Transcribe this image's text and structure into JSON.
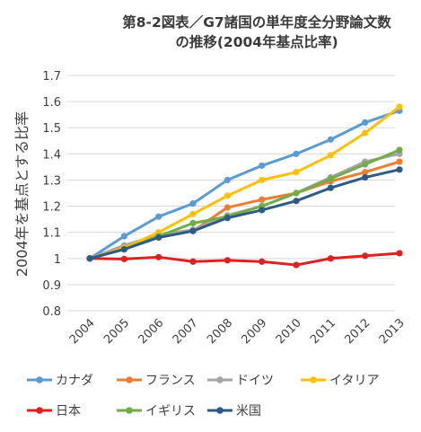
{
  "chart_data": {
    "type": "line",
    "title_line1": "第8-2図表／G7諸国の単年度全分野論文数",
    "title_line2": "の推移(2004年基点比率)",
    "xlabel": "",
    "ylabel": "2004年を基点とする比率",
    "categories": [
      "2004",
      "2005",
      "2006",
      "2007",
      "2008",
      "2009",
      "2010",
      "2011",
      "2012",
      "2013"
    ],
    "ylim": [
      0.8,
      1.7
    ],
    "yticks": [
      "0.8",
      "0.9",
      "1",
      "1.1",
      "1.2",
      "1.3",
      "1.4",
      "1.5",
      "1.6",
      "1.7"
    ],
    "grid": "horizontal",
    "legend_position": "bottom",
    "series": [
      {
        "name": "カナダ",
        "color": "#5b9bd5",
        "values": [
          1.0,
          1.085,
          1.16,
          1.21,
          1.3,
          1.355,
          1.4,
          1.455,
          1.52,
          1.565
        ]
      },
      {
        "name": "フランス",
        "color": "#ed7d31",
        "values": [
          1.0,
          1.045,
          1.085,
          1.105,
          1.195,
          1.225,
          1.25,
          1.295,
          1.33,
          1.37
        ]
      },
      {
        "name": "ドイツ",
        "color": "#a5a5a5",
        "values": [
          1.0,
          1.05,
          1.09,
          1.11,
          1.165,
          1.2,
          1.25,
          1.31,
          1.37,
          1.4
        ]
      },
      {
        "name": "イタリア",
        "color": "#ffc000",
        "values": [
          1.0,
          1.04,
          1.1,
          1.17,
          1.24,
          1.3,
          1.33,
          1.395,
          1.48,
          1.58
        ]
      },
      {
        "name": "日本",
        "color": "#e02020",
        "values": [
          1.0,
          0.998,
          1.005,
          0.988,
          0.993,
          0.988,
          0.975,
          1.0,
          1.01,
          1.02
        ]
      },
      {
        "name": "イギリス",
        "color": "#70ad47",
        "values": [
          1.0,
          1.035,
          1.085,
          1.135,
          1.16,
          1.2,
          1.25,
          1.305,
          1.36,
          1.415
        ]
      },
      {
        "name": "米国",
        "color": "#2e5a87",
        "values": [
          1.0,
          1.035,
          1.08,
          1.105,
          1.155,
          1.185,
          1.22,
          1.27,
          1.31,
          1.34
        ]
      }
    ]
  }
}
